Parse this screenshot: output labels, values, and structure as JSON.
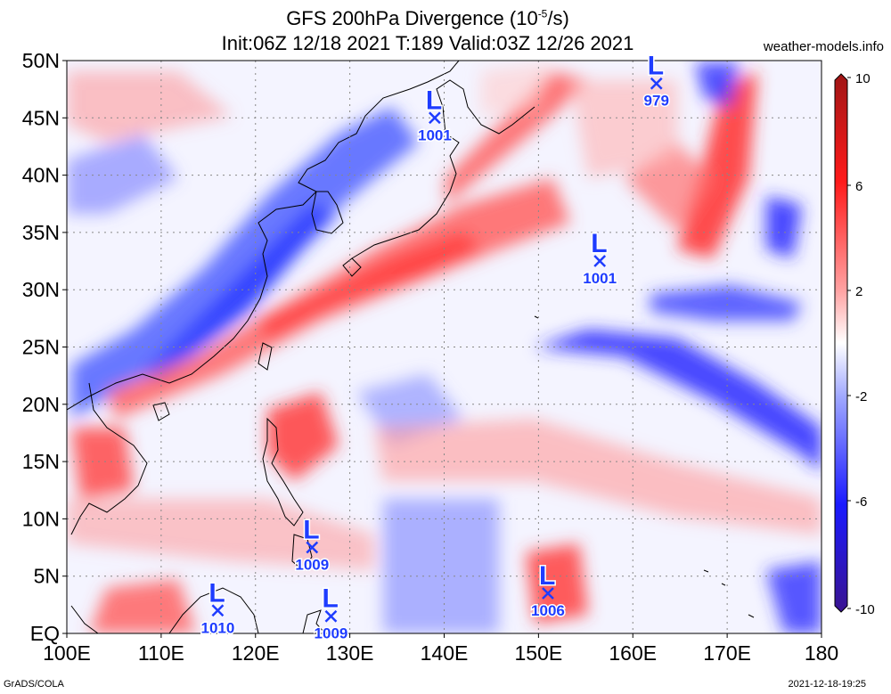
{
  "title": {
    "line1_pre": "GFS 200hPa Divergence (10",
    "line1_sup": "-5",
    "line1_post": "/s)",
    "line2": "Init:06Z 12/18 2021 T:189 Valid:03Z 12/26 2021"
  },
  "site": "weather-models.info",
  "footer_left": "GrADS/COLA",
  "footer_right": "2021-12-18-19:25",
  "axes": {
    "lon_range": [
      100,
      180
    ],
    "lat_range": [
      0,
      50
    ],
    "x_ticks": [
      {
        "lon": 100,
        "label": "100E"
      },
      {
        "lon": 110,
        "label": "110E"
      },
      {
        "lon": 120,
        "label": "120E"
      },
      {
        "lon": 130,
        "label": "130E"
      },
      {
        "lon": 140,
        "label": "140E"
      },
      {
        "lon": 150,
        "label": "150E"
      },
      {
        "lon": 160,
        "label": "160E"
      },
      {
        "lon": 170,
        "label": "170E"
      },
      {
        "lon": 180,
        "label": "180"
      }
    ],
    "y_ticks": [
      {
        "lat": 0,
        "label": "EQ"
      },
      {
        "lat": 5,
        "label": "5N"
      },
      {
        "lat": 10,
        "label": "10N"
      },
      {
        "lat": 15,
        "label": "15N"
      },
      {
        "lat": 20,
        "label": "20N"
      },
      {
        "lat": 25,
        "label": "25N"
      },
      {
        "lat": 30,
        "label": "30N"
      },
      {
        "lat": 35,
        "label": "35N"
      },
      {
        "lat": 40,
        "label": "40N"
      },
      {
        "lat": 45,
        "label": "45N"
      },
      {
        "lat": 50,
        "label": "50N"
      }
    ]
  },
  "colorbar": {
    "range": [
      -10,
      10
    ],
    "labels": [
      {
        "value": 10,
        "label": "10"
      },
      {
        "value": 6,
        "label": "6"
      },
      {
        "value": 2,
        "label": "2"
      },
      {
        "value": -2,
        "label": "-2"
      },
      {
        "value": -6,
        "label": "-6"
      },
      {
        "value": -10,
        "label": "-10"
      }
    ]
  },
  "lows": [
    {
      "lon": 139,
      "lat": 45,
      "pressure": "1001"
    },
    {
      "lon": 162.5,
      "lat": 48,
      "pressure": "979"
    },
    {
      "lon": 156.5,
      "lat": 32.5,
      "pressure": "1001"
    },
    {
      "lon": 126,
      "lat": 7.5,
      "pressure": "1009"
    },
    {
      "lon": 116,
      "lat": 2,
      "pressure": "1010"
    },
    {
      "lon": 128,
      "lat": 1.5,
      "pressure": "1009"
    },
    {
      "lon": 151,
      "lat": 3.5,
      "pressure": "1006"
    }
  ],
  "low_letter": "L",
  "colors": {
    "low_marker": "#1e3cff",
    "coast": "#000000"
  }
}
